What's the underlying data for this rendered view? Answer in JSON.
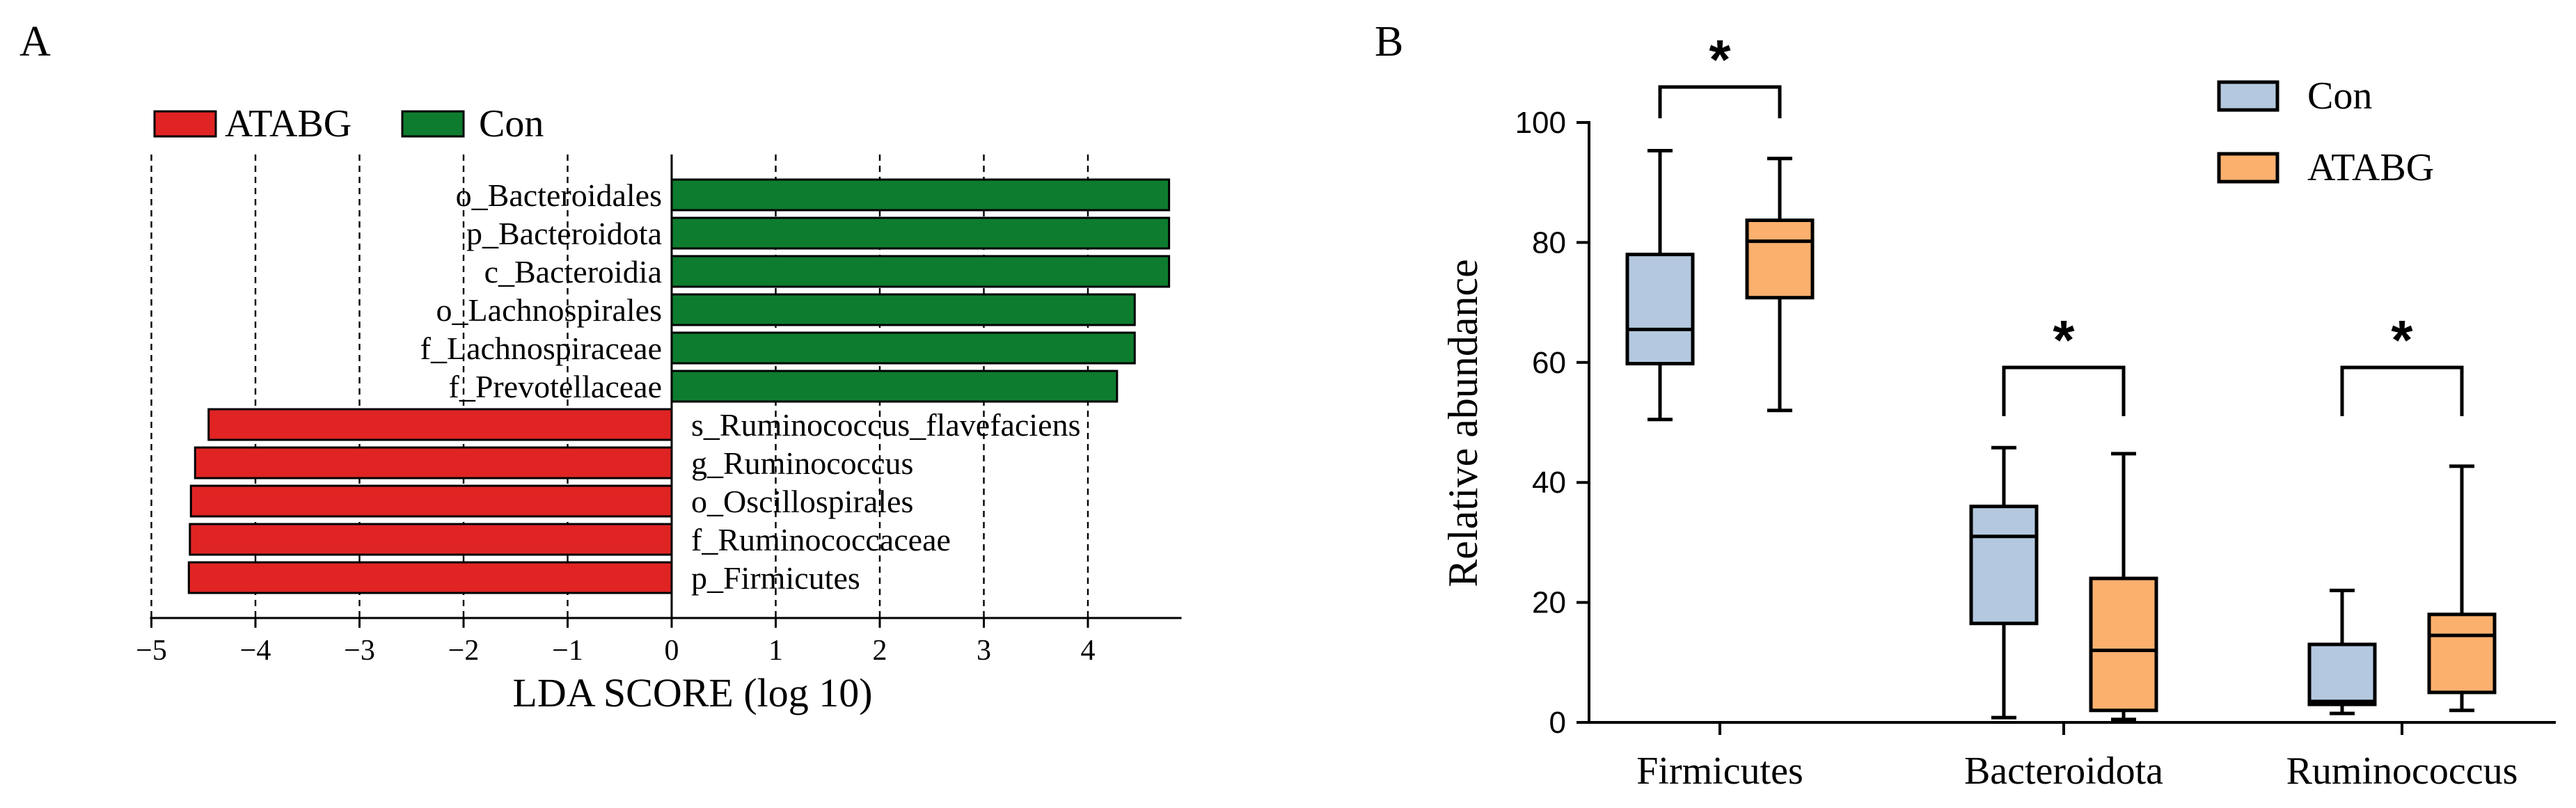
{
  "panels": {
    "a_label": "A",
    "b_label": "B"
  },
  "chart_data": [
    {
      "type": "bar",
      "orientation": "horizontal",
      "panel": "A",
      "xlabel": "LDA SCORE (log 10)",
      "xlim": [
        -5,
        4.9
      ],
      "xticks": [
        -5,
        -4,
        -3,
        -2,
        -1,
        0,
        1,
        2,
        3,
        4
      ],
      "xtick_labels": [
        "−5",
        "−4",
        "−3",
        "−2",
        "−1",
        "0",
        "1",
        "2",
        "3",
        "4"
      ],
      "grid": "vertical dashed",
      "legend": [
        {
          "name": "ATABG",
          "color": "#e02423"
        },
        {
          "name": "Con",
          "color": "#0e7c2f"
        }
      ],
      "legend_position": "top-left",
      "bars": [
        {
          "label": "o_Bacteroidales",
          "value": 4.78,
          "group": "Con"
        },
        {
          "label": "p_Bacteroidota",
          "value": 4.78,
          "group": "Con"
        },
        {
          "label": "c_Bacteroidia",
          "value": 4.78,
          "group": "Con"
        },
        {
          "label": "o_Lachnospirales",
          "value": 4.45,
          "group": "Con"
        },
        {
          "label": "f_Lachnospiraceae",
          "value": 4.45,
          "group": "Con"
        },
        {
          "label": "f_Prevotellaceae",
          "value": 4.28,
          "group": "Con"
        },
        {
          "label": "s_Ruminococcus_flavefaciens",
          "value": -4.45,
          "group": "ATABG"
        },
        {
          "label": "g_Ruminococcus",
          "value": -4.58,
          "group": "ATABG"
        },
        {
          "label": "o_Oscillospirales",
          "value": -4.62,
          "group": "ATABG"
        },
        {
          "label": "f_Ruminococcaceae",
          "value": -4.63,
          "group": "ATABG"
        },
        {
          "label": "p_Firmicutes",
          "value": -4.64,
          "group": "ATABG"
        }
      ]
    },
    {
      "type": "boxplot",
      "panel": "B",
      "ylabel": "Relative abundance",
      "ylim": [
        0,
        100
      ],
      "yticks": [
        0,
        20,
        40,
        60,
        80,
        100
      ],
      "ytick_labels": [
        "0",
        "20",
        "40",
        "60",
        "80",
        "100"
      ],
      "categories": [
        "Firmicutes",
        "Bacteroidota",
        "Ruminococcus"
      ],
      "legend": [
        {
          "name": "Con",
          "color": "#b4c9df"
        },
        {
          "name": "ATABG",
          "color": "#fbb06e"
        }
      ],
      "legend_position": "top-right",
      "series": [
        {
          "name": "Con",
          "boxes": [
            {
              "min": 50.5,
              "q1": 59.8,
              "median": 65.5,
              "q3": 78.0,
              "max": 95.3
            },
            {
              "min": 0.8,
              "q1": 16.5,
              "median": 31.0,
              "q3": 36.0,
              "max": 45.8
            },
            {
              "min": 1.5,
              "q1": 3.0,
              "median": 3.5,
              "q3": 13.0,
              "max": 22.0
            }
          ]
        },
        {
          "name": "ATABG",
          "boxes": [
            {
              "min": 52.0,
              "q1": 70.8,
              "median": 80.2,
              "q3": 83.7,
              "max": 94.0
            },
            {
              "min": 0.5,
              "q1": 2.0,
              "median": 12.0,
              "q3": 24.0,
              "max": 44.8
            },
            {
              "min": 2.0,
              "q1": 5.0,
              "median": 14.5,
              "q3": 18.0,
              "max": 42.7
            }
          ]
        }
      ],
      "significance": [
        {
          "category": "Firmicutes",
          "label": "*"
        },
        {
          "category": "Bacteroidota",
          "label": "*"
        },
        {
          "category": "Ruminococcus",
          "label": "*"
        }
      ]
    }
  ]
}
